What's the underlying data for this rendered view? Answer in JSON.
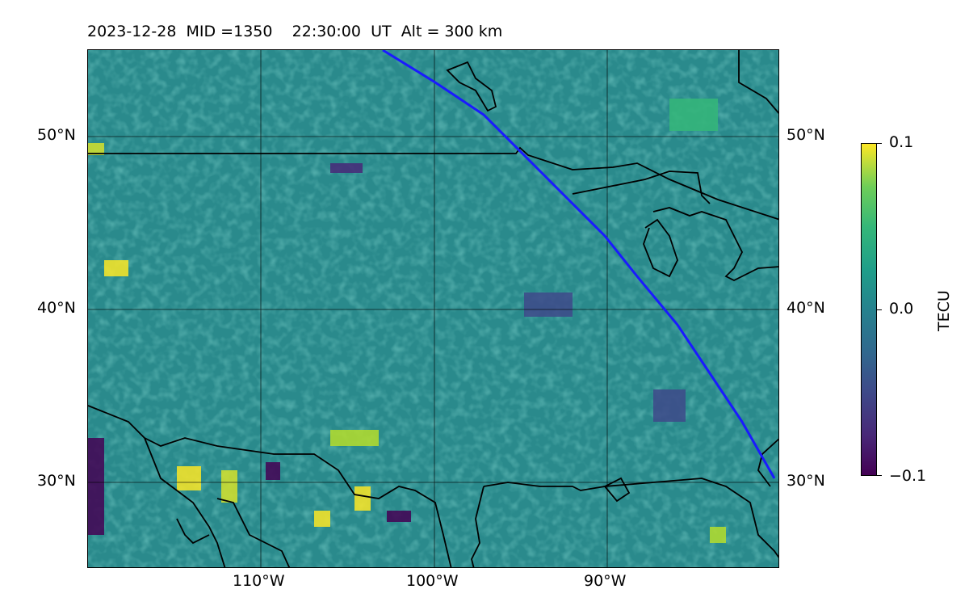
{
  "header": {
    "date": "2023-12-28",
    "mid_label": "MID =1350",
    "time": "22:30:00",
    "time_zone": "UT",
    "altitude_label": "Alt = 300 km"
  },
  "map": {
    "lat_labels": [
      "50°N",
      "40°N",
      "30°N"
    ],
    "lon_labels": [
      "110°W",
      "100°W",
      "90°W"
    ],
    "lat_range": [
      25,
      55
    ],
    "lon_range": [
      -120,
      -80
    ]
  },
  "colorbar": {
    "label": "TECU",
    "ticks": [
      "0.1",
      "0.0",
      "−0.1"
    ],
    "colormap": "viridis",
    "range": [
      -0.1,
      0.1
    ]
  },
  "colors": {
    "track_line": "#1a1aff",
    "coastline": "#000000",
    "grid": "#000000"
  }
}
